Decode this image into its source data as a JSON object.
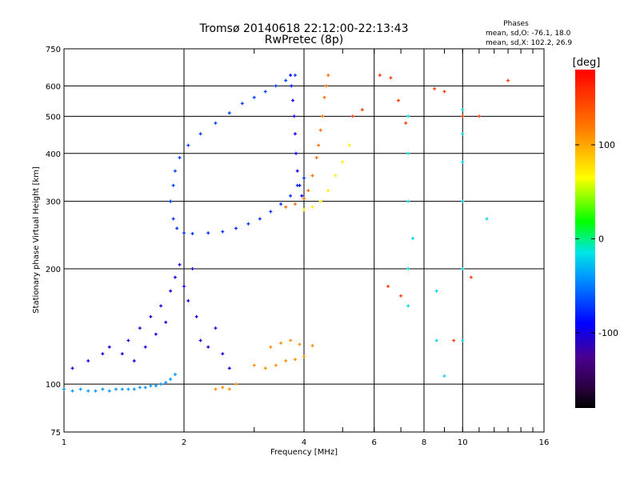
{
  "chart_data": {
    "type": "scatter",
    "title": "Tromsø 20140618 22:12:00-22:13:43",
    "subtitle": "RwPretec (8p)",
    "xlabel": "Frequency [MHz]",
    "ylabel": "Stationary phase Virtual Height [km]",
    "x_scale": "log",
    "y_scale": "log",
    "xlim": [
      1,
      16
    ],
    "ylim": [
      75,
      750
    ],
    "x_ticks": [
      "1",
      "2",
      "4",
      "6",
      "8",
      "10",
      "16"
    ],
    "x_tick_values": [
      1,
      2,
      4,
      6,
      8,
      10,
      16
    ],
    "y_ticks": [
      "75",
      "100",
      "200",
      "300",
      "400",
      "500",
      "600",
      "750"
    ],
    "y_tick_values": [
      75,
      100,
      200,
      300,
      400,
      500,
      600,
      750
    ],
    "grid": true,
    "phase_info": {
      "heading": "Phases",
      "line_o": "mean, sd,O: -76.1, 18.0",
      "line_x": "mean, sd,X: 102.2, 26.9"
    },
    "colorbar": {
      "label": "[deg]",
      "range": [
        -180,
        180
      ],
      "ticks": [
        "100",
        "0",
        "-100"
      ],
      "tick_values": [
        100,
        0,
        -100
      ]
    },
    "series": [
      {
        "trace": "low-layer",
        "phase": -40,
        "points": [
          [
            1.0,
            97
          ],
          [
            1.05,
            96
          ],
          [
            1.1,
            97
          ],
          [
            1.15,
            96
          ],
          [
            1.2,
            96
          ],
          [
            1.25,
            97
          ],
          [
            1.3,
            96
          ],
          [
            1.35,
            97
          ],
          [
            1.4,
            97
          ],
          [
            1.45,
            97
          ],
          [
            1.5,
            97
          ],
          [
            1.55,
            98
          ],
          [
            1.6,
            98
          ],
          [
            1.65,
            99
          ],
          [
            1.7,
            99
          ],
          [
            1.75,
            100
          ],
          [
            1.8,
            101
          ],
          [
            1.85,
            103
          ],
          [
            1.9,
            106
          ]
        ]
      },
      {
        "trace": "low-cloud",
        "phase": -100,
        "points": [
          [
            1.05,
            110
          ],
          [
            1.15,
            115
          ],
          [
            1.25,
            120
          ],
          [
            1.3,
            125
          ],
          [
            1.4,
            120
          ],
          [
            1.45,
            130
          ],
          [
            1.5,
            115
          ],
          [
            1.55,
            140
          ],
          [
            1.6,
            125
          ],
          [
            1.65,
            150
          ],
          [
            1.7,
            135
          ],
          [
            1.75,
            160
          ],
          [
            1.8,
            145
          ],
          [
            1.85,
            175
          ],
          [
            1.9,
            190
          ],
          [
            1.95,
            205
          ],
          [
            2.0,
            180
          ],
          [
            2.05,
            165
          ],
          [
            2.1,
            200
          ],
          [
            2.15,
            150
          ],
          [
            2.2,
            130
          ],
          [
            2.3,
            125
          ],
          [
            2.4,
            140
          ],
          [
            2.5,
            120
          ],
          [
            2.6,
            110
          ]
        ]
      },
      {
        "trace": "sporadic-low",
        "phase": 110,
        "points": [
          [
            2.4,
            97
          ],
          [
            2.5,
            98
          ],
          [
            2.6,
            97
          ],
          [
            2.7,
            100
          ],
          [
            3.0,
            112
          ],
          [
            3.2,
            110
          ],
          [
            3.4,
            112
          ],
          [
            3.6,
            115
          ],
          [
            3.8,
            116
          ],
          [
            4.0,
            118
          ],
          [
            3.3,
            125
          ],
          [
            3.5,
            128
          ],
          [
            3.7,
            130
          ],
          [
            3.9,
            127
          ],
          [
            4.2,
            126
          ]
        ]
      },
      {
        "trace": "cusp-lower",
        "phase": -75,
        "points": [
          [
            1.85,
            300
          ],
          [
            1.88,
            270
          ],
          [
            1.92,
            255
          ],
          [
            2.0,
            248
          ],
          [
            2.1,
            247
          ],
          [
            2.3,
            248
          ],
          [
            2.5,
            250
          ],
          [
            2.7,
            255
          ],
          [
            2.9,
            262
          ],
          [
            3.1,
            270
          ],
          [
            3.3,
            282
          ],
          [
            3.5,
            295
          ],
          [
            3.7,
            310
          ],
          [
            3.85,
            330
          ],
          [
            4.0,
            345
          ]
        ]
      },
      {
        "trace": "cusp-upper",
        "phase": -70,
        "points": [
          [
            1.85,
            300
          ],
          [
            1.88,
            330
          ],
          [
            1.9,
            360
          ],
          [
            1.95,
            390
          ],
          [
            2.05,
            420
          ],
          [
            2.2,
            450
          ],
          [
            2.4,
            480
          ],
          [
            2.6,
            510
          ],
          [
            2.8,
            540
          ],
          [
            3.0,
            560
          ],
          [
            3.2,
            580
          ],
          [
            3.4,
            600
          ],
          [
            3.6,
            620
          ],
          [
            3.8,
            640
          ]
        ]
      },
      {
        "trace": "arc-vertical",
        "phase": -95,
        "points": [
          [
            3.7,
            640
          ],
          [
            3.72,
            600
          ],
          [
            3.75,
            550
          ],
          [
            3.78,
            500
          ],
          [
            3.8,
            450
          ],
          [
            3.82,
            400
          ],
          [
            3.85,
            360
          ],
          [
            3.9,
            330
          ],
          [
            3.95,
            310
          ]
        ]
      },
      {
        "trace": "x-trace",
        "phase": 125,
        "points": [
          [
            3.6,
            290
          ],
          [
            3.8,
            295
          ],
          [
            4.0,
            305
          ],
          [
            4.1,
            320
          ],
          [
            4.2,
            350
          ],
          [
            4.3,
            390
          ],
          [
            4.35,
            420
          ],
          [
            4.4,
            460
          ],
          [
            4.45,
            500
          ],
          [
            4.5,
            560
          ],
          [
            4.55,
            600
          ],
          [
            4.6,
            640
          ]
        ]
      },
      {
        "trace": "x-lower",
        "phase": 70,
        "points": [
          [
            4.0,
            285
          ],
          [
            4.2,
            290
          ],
          [
            4.4,
            300
          ],
          [
            4.6,
            320
          ],
          [
            4.8,
            350
          ],
          [
            5.0,
            380
          ],
          [
            5.2,
            420
          ]
        ]
      },
      {
        "trace": "scatter-high",
        "phase": 150,
        "points": [
          [
            5.3,
            500
          ],
          [
            5.6,
            520
          ],
          [
            6.2,
            640
          ],
          [
            6.6,
            630
          ],
          [
            6.9,
            550
          ],
          [
            7.2,
            480
          ],
          [
            8.5,
            590
          ],
          [
            9.0,
            580
          ],
          [
            10.0,
            500
          ],
          [
            11.0,
            500
          ],
          [
            13.0,
            620
          ],
          [
            6.5,
            180
          ],
          [
            7.0,
            170
          ],
          [
            9.5,
            130
          ],
          [
            10.5,
            190
          ]
        ]
      },
      {
        "trace": "spread-columns",
        "phase": -20,
        "points": [
          [
            7.3,
            500
          ],
          [
            7.3,
            400
          ],
          [
            7.3,
            300
          ],
          [
            7.3,
            200
          ],
          [
            7.3,
            160
          ],
          [
            10.0,
            520
          ],
          [
            10.0,
            450
          ],
          [
            10.0,
            380
          ],
          [
            10.0,
            300
          ],
          [
            10.0,
            200
          ],
          [
            10.0,
            130
          ],
          [
            8.6,
            175
          ],
          [
            8.6,
            130
          ],
          [
            11.5,
            270
          ],
          [
            7.5,
            240
          ],
          [
            9.0,
            105
          ]
        ]
      }
    ]
  }
}
